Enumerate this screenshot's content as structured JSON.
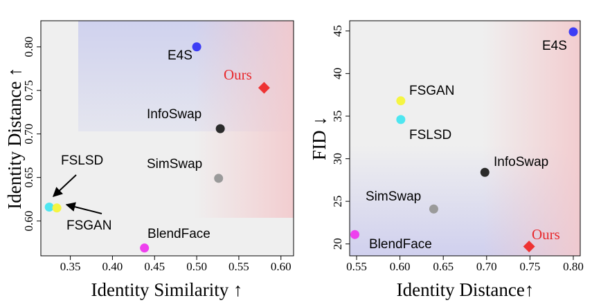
{
  "chart_data": [
    {
      "type": "scatter",
      "xlabel": "Identity Similarity ↑",
      "ylabel": "Identity Distance ↑",
      "xlim": [
        0.315,
        0.615
      ],
      "ylim": [
        0.56,
        0.83
      ],
      "xticks": [
        "0.35",
        "0.40",
        "0.45",
        "0.50",
        "0.55",
        "0.60"
      ],
      "xtick_values": [
        0.35,
        0.4,
        0.45,
        0.5,
        0.55,
        0.6
      ],
      "yticks": [
        "0.60",
        "0.65",
        "0.70",
        "0.75",
        "0.80"
      ],
      "ytick_values": [
        0.6,
        0.65,
        0.7,
        0.75,
        0.8
      ],
      "grid": false,
      "points": [
        {
          "name": "E4S",
          "x": 0.5,
          "y": 0.8,
          "color": "#3d3df5",
          "marker": "circle"
        },
        {
          "name": "Ours",
          "x": 0.58,
          "y": 0.753,
          "color": "#ee3333",
          "marker": "diamond"
        },
        {
          "name": "InfoSwap",
          "x": 0.528,
          "y": 0.706,
          "color": "#2b2b2b",
          "marker": "circle"
        },
        {
          "name": "SimSwap",
          "x": 0.526,
          "y": 0.649,
          "color": "#9a9a9a",
          "marker": "circle"
        },
        {
          "name": "FSLSD",
          "x": 0.325,
          "y": 0.616,
          "color": "#4ee6f0",
          "marker": "circle"
        },
        {
          "name": "FSGAN",
          "x": 0.334,
          "y": 0.615,
          "color": "#f5f542",
          "marker": "circle"
        },
        {
          "name": "BlendFace",
          "x": 0.438,
          "y": 0.569,
          "color": "#ee40ee",
          "marker": "circle"
        }
      ]
    },
    {
      "type": "scatter",
      "xlabel": "Identity Distance↑",
      "ylabel": "FID ↓",
      "xlim": [
        0.542,
        0.808
      ],
      "ylim": [
        18.6,
        46.2
      ],
      "xticks": [
        "0.55",
        "0.60",
        "0.65",
        "0.70",
        "0.75",
        "0.80"
      ],
      "xtick_values": [
        0.55,
        0.6,
        0.65,
        0.7,
        0.75,
        0.8
      ],
      "yticks": [
        "20",
        "25",
        "30",
        "35",
        "40",
        "45"
      ],
      "ytick_values": [
        20,
        25,
        30,
        35,
        40,
        45
      ],
      "grid": false,
      "points": [
        {
          "name": "E4S",
          "x": 0.8,
          "y": 44.9,
          "color": "#3d3df5",
          "marker": "circle"
        },
        {
          "name": "FSGAN",
          "x": 0.601,
          "y": 36.8,
          "color": "#f5f542",
          "marker": "circle"
        },
        {
          "name": "FSLSD",
          "x": 0.601,
          "y": 34.6,
          "color": "#4ee6f0",
          "marker": "circle"
        },
        {
          "name": "InfoSwap",
          "x": 0.698,
          "y": 28.4,
          "color": "#2b2b2b",
          "marker": "circle"
        },
        {
          "name": "SimSwap",
          "x": 0.639,
          "y": 24.1,
          "color": "#9a9a9a",
          "marker": "circle"
        },
        {
          "name": "BlendFace",
          "x": 0.548,
          "y": 21.1,
          "color": "#ee40ee",
          "marker": "circle"
        },
        {
          "name": "Ours",
          "x": 0.749,
          "y": 19.7,
          "color": "#ee3333",
          "marker": "diamond"
        }
      ]
    }
  ]
}
